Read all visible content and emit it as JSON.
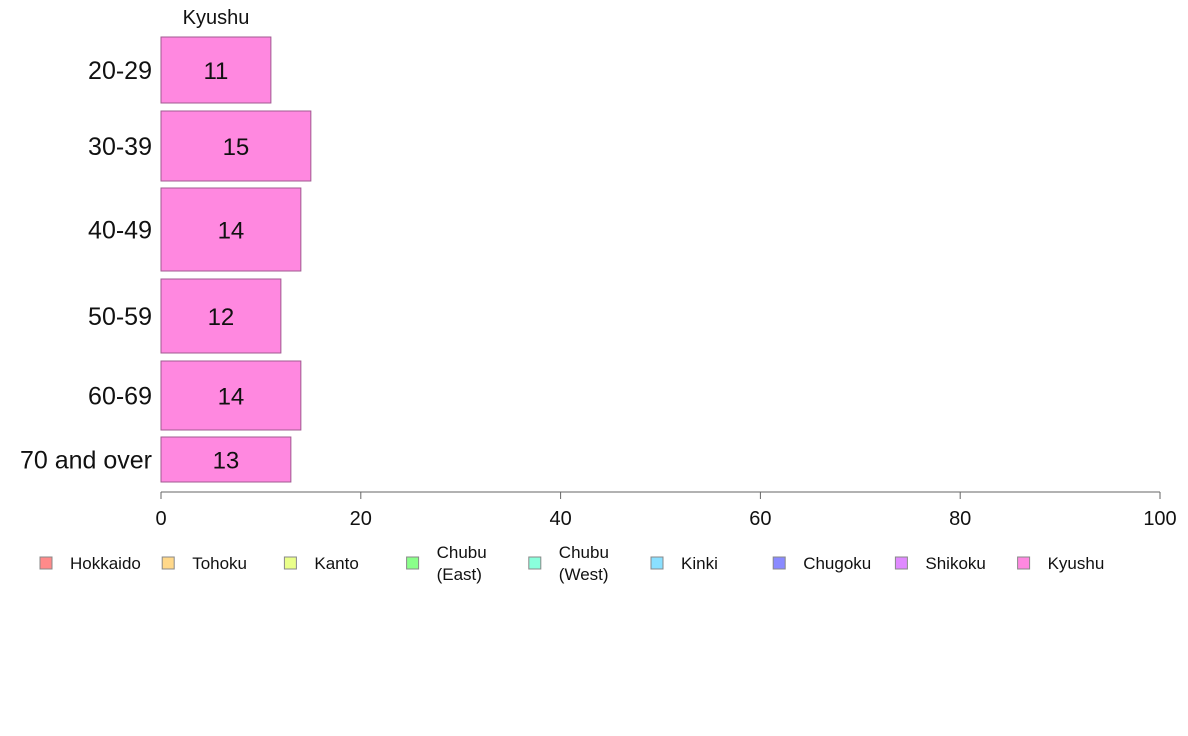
{
  "chart_data": {
    "type": "bar",
    "orientation": "horizontal",
    "series_title": "Kyushu",
    "categories": [
      "20-29",
      "30-39",
      "40-49",
      "50-59",
      "60-69",
      "70 and over"
    ],
    "series": [
      {
        "name": "Kyushu",
        "values": [
          11,
          15,
          14,
          12,
          14,
          13
        ],
        "color": "#ff88e0"
      }
    ],
    "data_labels": [
      "11",
      "15",
      "14",
      "12",
      "14",
      "13"
    ],
    "xlim": [
      0,
      100
    ],
    "xticks": [
      0,
      20,
      40,
      60,
      80,
      100
    ],
    "grid": false,
    "legend_position": "bottom",
    "legend": [
      {
        "label": [
          "Hokkaido"
        ],
        "color": "#ff8a8a"
      },
      {
        "label": [
          "Tohoku"
        ],
        "color": "#ffd88a"
      },
      {
        "label": [
          "Kanto"
        ],
        "color": "#eaff8a"
      },
      {
        "label": [
          "Chubu",
          "(East)"
        ],
        "color": "#8aff8a"
      },
      {
        "label": [
          "Chubu",
          "(West)"
        ],
        "color": "#8affdc"
      },
      {
        "label": [
          "Kinki"
        ],
        "color": "#8ae0ff"
      },
      {
        "label": [
          "Chugoku"
        ],
        "color": "#8a8aff"
      },
      {
        "label": [
          "Shikoku"
        ],
        "color": "#e08aff"
      },
      {
        "label": [
          "Kyushu"
        ],
        "color": "#ff88e0"
      }
    ]
  }
}
